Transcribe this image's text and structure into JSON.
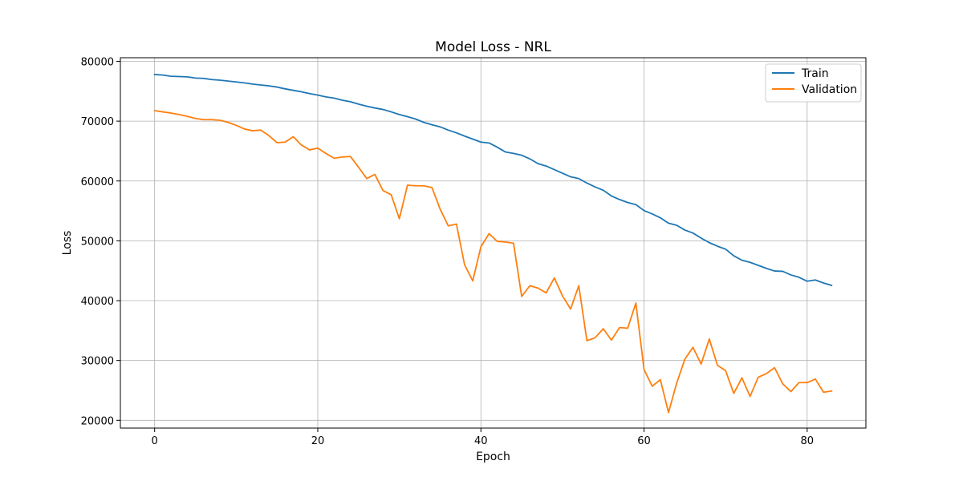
{
  "chart_data": {
    "type": "line",
    "title": "Model Loss - NRL",
    "xlabel": "Epoch",
    "ylabel": "Loss",
    "xlim": [
      -4.2,
      87.2
    ],
    "ylim": [
      18700,
      80600
    ],
    "xticks": [
      0,
      20,
      40,
      60,
      80
    ],
    "yticks": [
      20000,
      30000,
      40000,
      50000,
      60000,
      70000,
      80000
    ],
    "grid": true,
    "legend_position": "top-right",
    "series": [
      {
        "name": "Train",
        "color": "#1f77b4",
        "values": [
          77800,
          77700,
          77500,
          77450,
          77400,
          77200,
          77150,
          76950,
          76850,
          76700,
          76550,
          76400,
          76200,
          76050,
          75900,
          75700,
          75400,
          75150,
          74900,
          74600,
          74350,
          74050,
          73850,
          73500,
          73250,
          72850,
          72500,
          72200,
          71950,
          71550,
          71100,
          70750,
          70350,
          69800,
          69400,
          69050,
          68500,
          68050,
          67500,
          67000,
          66500,
          66350,
          65650,
          64850,
          64600,
          64300,
          63700,
          62900,
          62500,
          61900,
          61300,
          60700,
          60400,
          59650,
          59000,
          58450,
          57500,
          56900,
          56400,
          56050,
          55050,
          54500,
          53850,
          52950,
          52600,
          51800,
          51300,
          50450,
          49700,
          49100,
          48600,
          47500,
          46750,
          46400,
          45900,
          45400,
          44950,
          44900,
          44300,
          43900,
          43250,
          43450,
          42950,
          42550
        ]
      },
      {
        "name": "Validation",
        "color": "#ff7f0e",
        "values": [
          71750,
          71550,
          71350,
          71100,
          70800,
          70450,
          70250,
          70250,
          70150,
          69800,
          69300,
          68700,
          68400,
          68500,
          67600,
          66400,
          66500,
          67400,
          66000,
          65200,
          65500,
          64600,
          63800,
          64000,
          64100,
          62300,
          60400,
          61100,
          58400,
          57700,
          53700,
          59300,
          59200,
          59200,
          58900,
          55300,
          52500,
          52800,
          46000,
          43300,
          49000,
          51200,
          49900,
          49800,
          49600,
          40700,
          42500,
          42100,
          41300,
          43800,
          40800,
          38600,
          42500,
          33300,
          33800,
          35300,
          33400,
          35500,
          35400,
          39600,
          28500,
          25700,
          26800,
          21300,
          26200,
          30200,
          32200,
          29400,
          33600,
          29200,
          28300,
          24500,
          27100,
          24000,
          27200,
          27800,
          28800,
          26100,
          24800,
          26300,
          26300,
          26900,
          24700,
          24900
        ]
      }
    ]
  }
}
